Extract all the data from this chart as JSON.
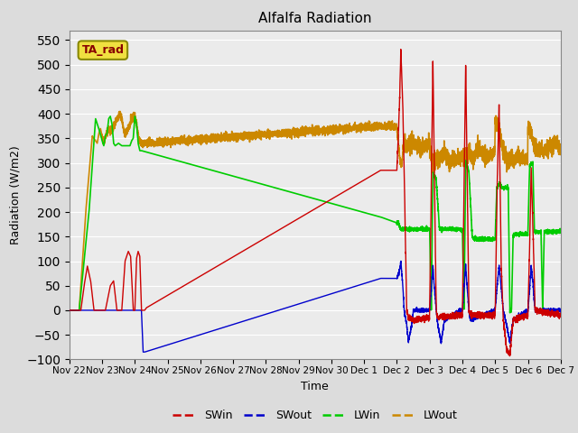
{
  "title": "Alfalfa Radiation",
  "xlabel": "Time",
  "ylabel": "Radiation (W/m2)",
  "ylim": [
    -100,
    570
  ],
  "yticks": [
    -100,
    -50,
    0,
    50,
    100,
    150,
    200,
    250,
    300,
    350,
    400,
    450,
    500,
    550
  ],
  "bg_color": "#dcdcdc",
  "plot_bg_color": "#ebebeb",
  "legend_label": "TA_rad",
  "legend_entries": [
    "SWin",
    "SWout",
    "LWin",
    "LWout"
  ],
  "line_colors": {
    "SWin": "#cc0000",
    "SWout": "#0000cc",
    "LWin": "#00cc00",
    "LWout": "#cc8800"
  },
  "tick_labels": [
    "Nov 22",
    "Nov 23",
    "Nov 24",
    "Nov 25",
    "Nov 26",
    "Nov 27",
    "Nov 28",
    "Nov 29",
    "Nov 30",
    "Dec 1",
    "Dec 2",
    "Dec 3",
    "Dec 4",
    "Dec 5",
    "Dec 6",
    "Dec 7"
  ]
}
